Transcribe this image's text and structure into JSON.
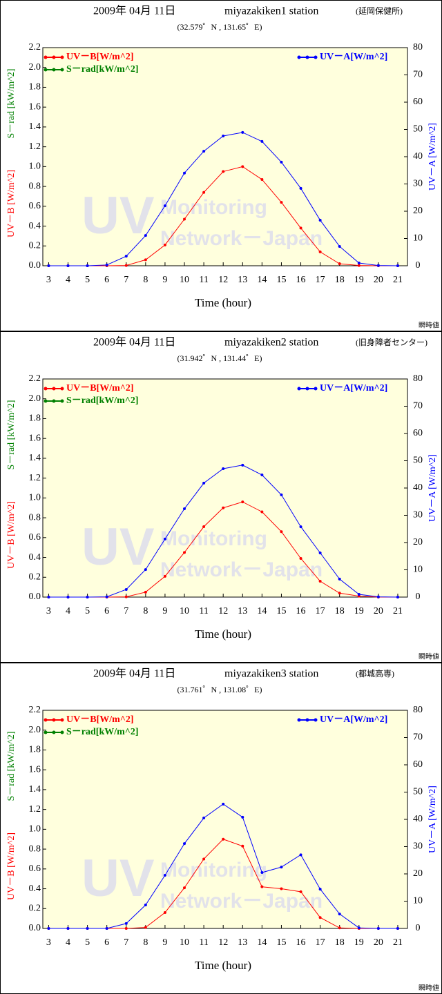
{
  "chart_data": [
    {
      "type": "line",
      "title": "2009年 04月 11日",
      "station": "miyazakiken1 station",
      "site": "(延岡保健所)",
      "subtitle": "(32.579゜N , 131.65゜E)",
      "xlabel": "Time (hour)",
      "ylabel": "UV－B [W/m^2]",
      "ylabel2": "S－rad [kW/m^2]",
      "y2label": "UV－A [W/m^2]",
      "watermark": [
        "UV",
        "Monitoring",
        "Network－Japan"
      ],
      "note": "瞬時値",
      "x": [
        3,
        4,
        5,
        6,
        7,
        8,
        9,
        10,
        11,
        12,
        13,
        14,
        15,
        16,
        17,
        18,
        19,
        20,
        21
      ],
      "xticks": [
        3,
        4,
        5,
        6,
        7,
        8,
        9,
        10,
        11,
        12,
        13,
        14,
        15,
        16,
        17,
        18,
        19,
        20,
        21
      ],
      "xlim": [
        2.7,
        21.5
      ],
      "ylim": [
        0,
        2.2
      ],
      "yticks": [
        {
          "value": 0,
          "label": "0.0"
        },
        0.2,
        0.4,
        0.6,
        0.8,
        {
          "value": 1,
          "label": "1.0"
        },
        1.2,
        1.4,
        1.6,
        1.8,
        {
          "value": 2,
          "label": "2.0"
        },
        2.2
      ],
      "y2lim": [
        0,
        80
      ],
      "y2ticks": [
        0,
        10,
        20,
        30,
        40,
        50,
        60,
        70,
        80
      ],
      "background": "#ffffdd",
      "series": [
        {
          "name": "UV－B[W/m^2]",
          "color": "#ff0000",
          "values": [
            0,
            0,
            0,
            0,
            0.003,
            0.06,
            0.21,
            0.47,
            0.74,
            0.95,
            1.0,
            0.87,
            0.64,
            0.38,
            0.14,
            0.02,
            0.003,
            0,
            0
          ]
        },
        {
          "name": "S－rad[kW/m^2]",
          "color": "#008000",
          "values": [
            null,
            null,
            null,
            null,
            null,
            null,
            null,
            null,
            null,
            null,
            null,
            null,
            null,
            null,
            null,
            null,
            null,
            null,
            null
          ]
        },
        {
          "name": "UV－A[W/m^2]",
          "color": "#0000ff",
          "axis": "y2",
          "values": [
            0,
            0,
            0,
            0.3,
            3.5,
            11.1,
            22,
            34,
            42,
            47.6,
            48.9,
            45.6,
            38,
            28.4,
            16.7,
            7.1,
            1.0,
            0.1,
            0
          ]
        }
      ]
    },
    {
      "type": "line",
      "title": "2009年 04月 11日",
      "station": "miyazakiken2 station",
      "site": "(旧身障者センター)",
      "subtitle": "(31.942゜N , 131.44゜E)",
      "xlabel": "Time (hour)",
      "ylabel": "UV－B [W/m^2]",
      "ylabel2": "S－rad [kW/m^2]",
      "y2label": "UV－A [W/m^2]",
      "watermark": [
        "UV",
        "Monitoring",
        "Network－Japan"
      ],
      "note": "瞬時値",
      "x": [
        3,
        4,
        5,
        6,
        7,
        8,
        9,
        10,
        11,
        12,
        13,
        14,
        15,
        16,
        17,
        18,
        19,
        20,
        21
      ],
      "xticks": [
        3,
        4,
        5,
        6,
        7,
        8,
        9,
        10,
        11,
        12,
        13,
        14,
        15,
        16,
        17,
        18,
        19,
        20,
        21
      ],
      "xlim": [
        2.7,
        21.5
      ],
      "ylim": [
        0,
        2.2
      ],
      "yticks": [
        {
          "value": 0,
          "label": "0.0"
        },
        0.2,
        0.4,
        0.6,
        0.8,
        {
          "value": 1,
          "label": "1.0"
        },
        1.2,
        1.4,
        1.6,
        1.8,
        {
          "value": 2,
          "label": "2.0"
        },
        2.2
      ],
      "y2lim": [
        0,
        80
      ],
      "y2ticks": [
        0,
        10,
        20,
        30,
        40,
        50,
        60,
        70,
        80
      ],
      "background": "#ffffdd",
      "series": [
        {
          "name": "UV－B[W/m^2]",
          "color": "#ff0000",
          "values": [
            0,
            0,
            0,
            0,
            0.003,
            0.05,
            0.21,
            0.45,
            0.71,
            0.9,
            0.96,
            0.86,
            0.66,
            0.39,
            0.16,
            0.04,
            0.01,
            0,
            0
          ]
        },
        {
          "name": "S－rad[kW/m^2]",
          "color": "#008000",
          "values": [
            null,
            null,
            null,
            null,
            null,
            null,
            null,
            null,
            null,
            null,
            null,
            null,
            null,
            null,
            null,
            null,
            null,
            null,
            null
          ]
        },
        {
          "name": "UV－A[W/m^2]",
          "color": "#0000ff",
          "axis": "y2",
          "values": [
            0,
            0,
            0,
            0.1,
            2.8,
            10.1,
            21.3,
            32.4,
            41.8,
            47.1,
            48.4,
            44.8,
            37.5,
            25.8,
            16.2,
            6.6,
            1.0,
            0.1,
            0
          ]
        }
      ]
    },
    {
      "type": "line",
      "title": "2009年 04月 11日",
      "station": "miyazakiken3 station",
      "site": "(都城高専)",
      "subtitle": "(31.761゜N , 131.08゜E)",
      "xlabel": "Time (hour)",
      "ylabel": "UV－B [W/m^2]",
      "ylabel2": "S－rad [kW/m^2]",
      "y2label": "UV－A [W/m^2]",
      "watermark": [
        "UV",
        "Monitoring",
        "Network－Japan"
      ],
      "note": "瞬時値",
      "x": [
        3,
        4,
        5,
        6,
        7,
        8,
        9,
        10,
        11,
        12,
        13,
        14,
        15,
        16,
        17,
        18,
        19,
        20,
        21
      ],
      "xticks": [
        3,
        4,
        5,
        6,
        7,
        8,
        9,
        10,
        11,
        12,
        13,
        14,
        15,
        16,
        17,
        18,
        19,
        20,
        21
      ],
      "xlim": [
        2.7,
        21.5
      ],
      "ylim": [
        0,
        2.2
      ],
      "yticks": [
        {
          "value": 0,
          "label": "0.0"
        },
        0.2,
        0.4,
        0.6,
        0.8,
        {
          "value": 1,
          "label": "1.0"
        },
        1.2,
        1.4,
        1.6,
        1.8,
        {
          "value": 2,
          "label": "2.0"
        },
        2.2
      ],
      "y2lim": [
        0,
        80
      ],
      "y2ticks": [
        0,
        10,
        20,
        30,
        40,
        50,
        60,
        70,
        80
      ],
      "background": "#ffffdd",
      "series": [
        {
          "name": "UV－B[W/m^2]",
          "color": "#ff0000",
          "values": [
            0,
            0,
            0,
            0,
            0,
            0.01,
            0.16,
            0.41,
            0.7,
            0.9,
            0.83,
            0.42,
            0.4,
            0.37,
            0.11,
            0.005,
            0,
            0,
            0
          ]
        },
        {
          "name": "S－rad[kW/m^2]",
          "color": "#008000",
          "values": [
            null,
            null,
            null,
            null,
            null,
            null,
            null,
            null,
            null,
            null,
            null,
            null,
            null,
            null,
            null,
            null,
            null,
            null,
            null
          ]
        },
        {
          "name": "UV－A[W/m^2]",
          "color": "#0000ff",
          "axis": "y2",
          "values": [
            0,
            0,
            0,
            0,
            1.8,
            8.6,
            19.5,
            31.1,
            40.5,
            45.6,
            40.8,
            20.5,
            22.5,
            27,
            14.4,
            5.3,
            0.2,
            0,
            0
          ]
        }
      ]
    }
  ]
}
